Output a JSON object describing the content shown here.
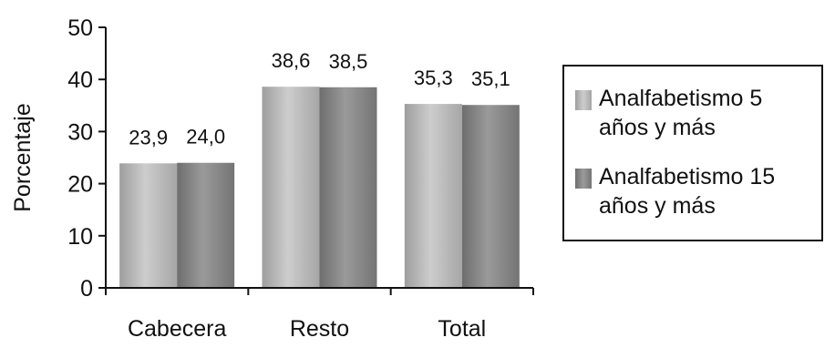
{
  "chart_data": {
    "type": "bar",
    "categories": [
      "Cabecera",
      "Resto",
      "Total"
    ],
    "series": [
      {
        "name": "Analfabetismo 5 años y más",
        "name_lines": [
          "Analfabetismo 5",
          "años y más"
        ],
        "values": [
          23.9,
          38.6,
          35.3
        ],
        "labels": [
          "23,9",
          "38,6",
          "35,3"
        ],
        "color": "#b8b8b8"
      },
      {
        "name": "Analfabetismo 15 años y más",
        "name_lines": [
          "Analfabetismo 15",
          "años y más"
        ],
        "values": [
          24.0,
          38.5,
          35.1
        ],
        "labels": [
          "24,0",
          "38,5",
          "35,1"
        ],
        "color": "#8a8a8a"
      }
    ],
    "ylabel": "Porcentaje",
    "xlabel": "",
    "ylim": [
      0,
      50
    ],
    "yticks": [
      0,
      10,
      20,
      30,
      40,
      50
    ],
    "grid": false,
    "legend_position": "right"
  }
}
